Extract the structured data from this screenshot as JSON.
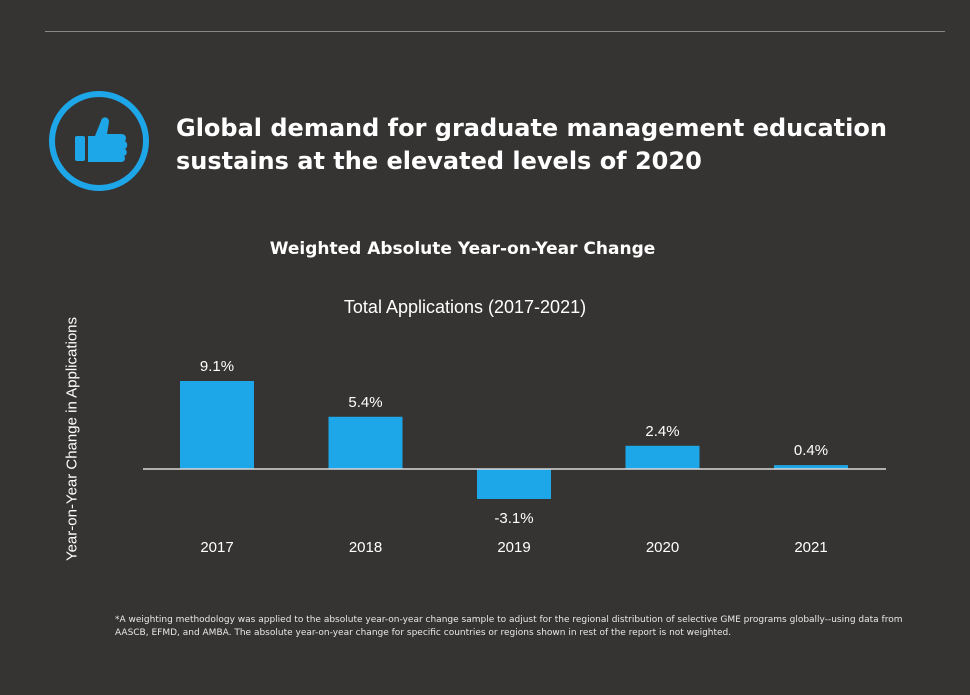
{
  "header": {
    "headline": "Global demand for graduate management education sustains at the elevated levels of 2020",
    "icon": "thumbs-up-icon",
    "accent_color": "#1ea7e8"
  },
  "chart_data": {
    "type": "bar",
    "subtitle": "Weighted Absolute Year-on-Year Change",
    "title": "Total Applications (2017-2021)",
    "ylabel": "Year-on-Year Change in Applications",
    "xlabel": "",
    "categories": [
      "2017",
      "2018",
      "2019",
      "2020",
      "2021"
    ],
    "values": [
      9.1,
      5.4,
      -3.1,
      2.4,
      0.4
    ],
    "data_labels": [
      "9.1%",
      "5.4%",
      "-3.1%",
      "2.4%",
      "0.4%"
    ],
    "unit": "%",
    "bar_color": "#1ea7e8",
    "axis_color": "#d9d9d9",
    "grid": false,
    "legend": false
  },
  "footnote": "*A weighting methodology was applied to the absolute year-on-year change sample to adjust for the regional distribution of selective GME programs globally--using data from AASCB, EFMD, and AMBA. The absolute year-on-year change for specific countries or regions shown in rest of the report is not weighted."
}
